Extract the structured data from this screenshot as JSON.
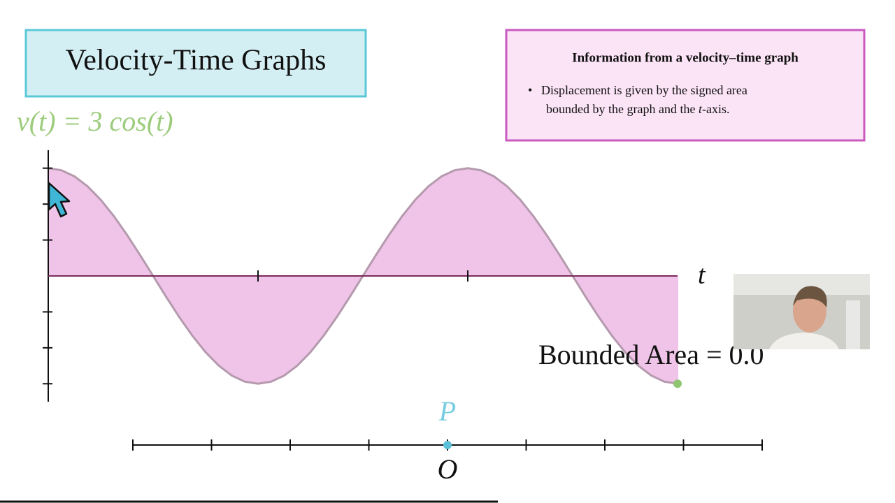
{
  "chart_data": {
    "type": "line",
    "title": "v(t) = 3 cos(t)",
    "x_label": "t",
    "annotation": "Bounded Area = 0.0",
    "x": [
      0,
      0.196,
      0.393,
      0.589,
      0.785,
      0.982,
      1.178,
      1.374,
      1.571,
      1.767,
      1.963,
      2.16,
      2.356,
      2.553,
      2.749,
      2.945,
      3.142,
      3.338,
      3.534,
      3.731,
      3.927,
      4.123,
      4.32,
      4.516,
      4.712,
      4.909,
      5.105,
      5.301,
      5.498,
      5.694,
      5.89,
      6.087,
      6.283,
      6.48,
      6.676,
      6.872,
      7.069,
      7.265,
      7.461,
      7.658,
      7.854,
      8.05,
      8.247,
      8.443,
      8.639,
      8.836,
      9.032,
      9.228,
      9.425
    ],
    "values": [
      3,
      2.942,
      2.772,
      2.494,
      2.121,
      1.667,
      1.148,
      0.585,
      0,
      -0.585,
      -1.148,
      -1.667,
      -2.121,
      -2.494,
      -2.772,
      -2.942,
      -3,
      -2.942,
      -2.772,
      -2.494,
      -2.121,
      -1.667,
      -1.148,
      -0.585,
      0,
      0.585,
      1.148,
      1.667,
      2.121,
      2.494,
      2.772,
      2.942,
      3,
      2.942,
      2.772,
      2.494,
      2.121,
      1.667,
      1.148,
      0.585,
      0,
      -0.585,
      -1.148,
      -1.667,
      -2.121,
      -2.494,
      -2.772,
      -2.942,
      -3
    ],
    "color": "#b59aae",
    "fill": "#f0c4e8",
    "xlim": [
      0,
      9.425
    ],
    "xticks": [
      3.142,
      6.283
    ],
    "ylim": [
      -3.5,
      3.5
    ],
    "yticks": [
      -3,
      -2,
      -1,
      1,
      2,
      3
    ],
    "grid": false
  },
  "header": {
    "title": "Velocity-Time Graphs"
  },
  "info": {
    "title": "Information from a velocity–time graph",
    "bullet": [
      "Displacement is given by the signed area",
      "bounded by the graph and the ",
      "t",
      "-axis."
    ]
  },
  "number_line": {
    "point_label": "P",
    "origin_label": "O"
  }
}
